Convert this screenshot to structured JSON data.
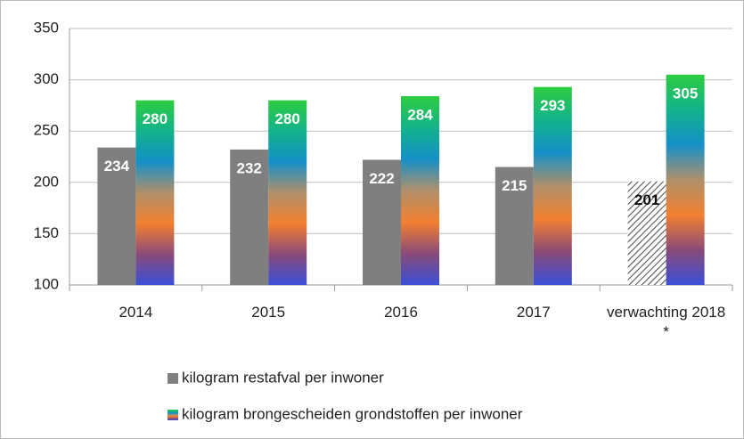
{
  "chart_data": {
    "type": "bar",
    "categories": [
      "2014",
      "2015",
      "2016",
      "2017",
      "verwachting 2018 *"
    ],
    "series": [
      {
        "name": "kilogram restafval per inwoner",
        "color": "#7f7f7f",
        "values": [
          234,
          232,
          222,
          215,
          201
        ],
        "hatched": [
          false,
          false,
          false,
          false,
          true
        ]
      },
      {
        "name": "kilogram brongescheiden grondstoffen per inwoner",
        "color": "gradient",
        "gradient": [
          "#2ecc40",
          "#12b38a",
          "#1490c8",
          "#b0906a",
          "#f28030",
          "#8a4a78",
          "#3a4fd8"
        ],
        "values": [
          280,
          280,
          284,
          293,
          305
        ]
      }
    ],
    "ylim": [
      100,
      350
    ],
    "yticks": [
      100,
      150,
      200,
      250,
      300,
      350
    ],
    "grid": true,
    "legend": "bottom"
  }
}
